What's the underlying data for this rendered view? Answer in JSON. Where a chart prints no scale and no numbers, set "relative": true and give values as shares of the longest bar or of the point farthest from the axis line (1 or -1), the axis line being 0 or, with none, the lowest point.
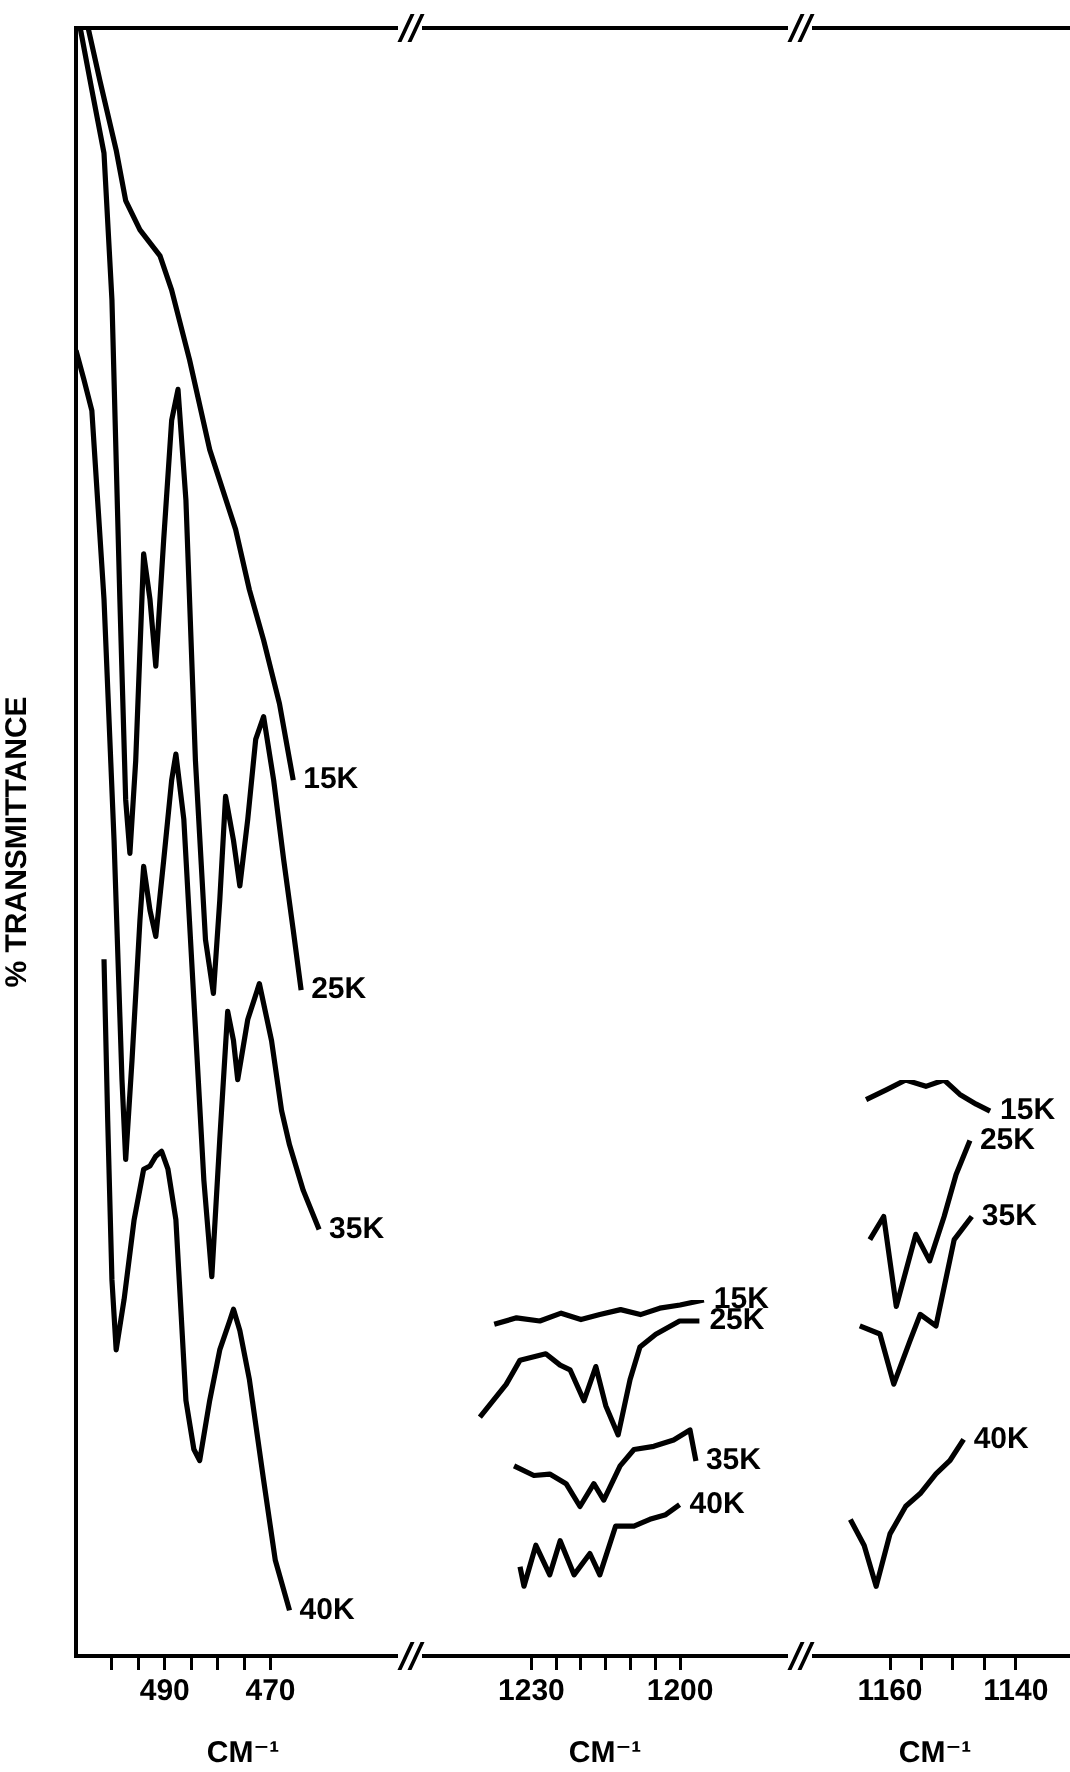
{
  "chart_data": [
    {
      "type": "line",
      "relative": true,
      "ylabel": "% TRANSMITTANCE",
      "xlabel": "CM⁻¹",
      "xlim": [
        506.8,
        443.6
      ],
      "xticks": [
        {
          "value": 500,
          "label": null
        },
        {
          "value": 495,
          "label": null
        },
        490,
        {
          "value": 485,
          "label": null
        },
        {
          "value": 480,
          "label": null
        },
        {
          "value": 475,
          "label": null
        },
        470
      ],
      "series": [
        {
          "name": "15K",
          "color": "#000000",
          "x": [
            504.5,
            502.3,
            499.2,
            497.4,
            494.7,
            490.9,
            488.7,
            485.3,
            481.5,
            479.6,
            476.6,
            474.0,
            471.3,
            468.3,
            465.7
          ],
          "values": [
            1.0,
            0.968,
            0.925,
            0.894,
            0.876,
            0.86,
            0.839,
            0.796,
            0.741,
            0.722,
            0.692,
            0.655,
            0.624,
            0.585,
            0.538
          ]
        },
        {
          "name": "25K",
          "color": "#000000",
          "x": [
            506.0,
            503.8,
            501.5,
            500.0,
            498.5,
            497.4,
            496.6,
            495.5,
            494.0,
            492.8,
            491.7,
            490.2,
            488.7,
            487.5,
            486.0,
            484.2,
            482.3,
            480.8,
            479.6,
            478.5,
            477.0,
            475.8,
            474.3,
            472.8,
            471.3,
            469.4,
            467.5,
            465.7,
            464.2
          ],
          "values": [
            1.0,
            0.962,
            0.923,
            0.833,
            0.649,
            0.526,
            0.493,
            0.55,
            0.677,
            0.649,
            0.608,
            0.686,
            0.759,
            0.778,
            0.71,
            0.55,
            0.44,
            0.407,
            0.464,
            0.528,
            0.501,
            0.473,
            0.514,
            0.563,
            0.577,
            0.538,
            0.489,
            0.446,
            0.409
          ]
        },
        {
          "name": "35K",
          "color": "#000000",
          "x": [
            506.8,
            505.3,
            503.8,
            501.5,
            499.6,
            498.1,
            497.4,
            496.2,
            494.7,
            494.0,
            492.8,
            491.7,
            490.2,
            488.7,
            487.9,
            486.4,
            484.5,
            482.6,
            481.1,
            479.6,
            478.1,
            477.0,
            476.2,
            474.3,
            472.1,
            469.8,
            467.9,
            466.4,
            463.8,
            460.8
          ],
          "values": [
            0.802,
            0.784,
            0.765,
            0.649,
            0.501,
            0.354,
            0.305,
            0.366,
            0.452,
            0.485,
            0.458,
            0.442,
            0.489,
            0.538,
            0.554,
            0.514,
            0.403,
            0.292,
            0.233,
            0.317,
            0.396,
            0.378,
            0.354,
            0.391,
            0.413,
            0.378,
            0.335,
            0.314,
            0.286,
            0.262
          ]
        },
        {
          "name": "40K",
          "color": "#000000",
          "x": [
            501.5,
            500.8,
            500.0,
            499.2,
            497.7,
            495.8,
            494.0,
            492.8,
            491.7,
            490.6,
            489.4,
            487.9,
            486.0,
            484.5,
            483.4,
            481.5,
            479.6,
            477.7,
            477.0,
            475.8,
            474.0,
            471.3,
            469.1,
            466.4
          ],
          "values": [
            0.428,
            0.329,
            0.231,
            0.188,
            0.219,
            0.268,
            0.299,
            0.301,
            0.307,
            0.31,
            0.299,
            0.268,
            0.157,
            0.127,
            0.12,
            0.157,
            0.188,
            0.206,
            0.213,
            0.2,
            0.17,
            0.108,
            0.059,
            0.028
          ]
        }
      ]
    },
    {
      "type": "line",
      "relative": true,
      "xlabel": "CM⁻¹",
      "xlim": [
        1254.5,
        1175.8
      ],
      "xticks": [
        1230,
        {
          "value": 1225,
          "label": null
        },
        {
          "value": 1220,
          "label": null
        },
        {
          "value": 1215,
          "label": null
        },
        {
          "value": 1210,
          "label": null
        },
        {
          "value": 1205,
          "label": null
        },
        1200
      ],
      "series": [
        {
          "name": "15K",
          "color": "#000000",
          "x": [
            1237.5,
            1233.0,
            1228.3,
            1224.0,
            1220.0,
            1216.2,
            1212.0,
            1208.0,
            1204.1,
            1200.0,
            1195.2
          ],
          "values": [
            0.932,
            0.95,
            0.941,
            0.963,
            0.945,
            0.959,
            0.973,
            0.959,
            0.977,
            0.986,
            1.0
          ]
        },
        {
          "name": "25K",
          "color": "#000000",
          "x": [
            1240.4,
            1235.1,
            1232.3,
            1227.1,
            1224.2,
            1222.2,
            1219.4,
            1217.0,
            1215.0,
            1212.5,
            1210.1,
            1208.1,
            1204.9,
            1200.1,
            1196.1
          ],
          "values": [
            0.671,
            0.763,
            0.831,
            0.849,
            0.817,
            0.804,
            0.717,
            0.813,
            0.703,
            0.621,
            0.776,
            0.868,
            0.904,
            0.941,
            0.941
          ]
        },
        {
          "name": "35K",
          "color": "#000000",
          "x": [
            1233.5,
            1229.5,
            1226.3,
            1223.0,
            1220.2,
            1217.4,
            1215.4,
            1212.1,
            1209.3,
            1205.3,
            1201.3,
            1198.0,
            1196.8
          ],
          "values": [
            0.534,
            0.507,
            0.511,
            0.484,
            0.42,
            0.484,
            0.438,
            0.534,
            0.58,
            0.589,
            0.607,
            0.635,
            0.548
          ]
        },
        {
          "name": "40K",
          "color": "#000000",
          "x": [
            1232.3,
            1231.5,
            1229.1,
            1226.3,
            1224.2,
            1221.4,
            1218.2,
            1216.2,
            1213.0,
            1209.3,
            1206.1,
            1202.9,
            1200.1
          ],
          "values": [
            0.251,
            0.196,
            0.311,
            0.228,
            0.324,
            0.228,
            0.288,
            0.228,
            0.365,
            0.365,
            0.384,
            0.397,
            0.425
          ]
        }
      ]
    },
    {
      "type": "line",
      "relative": true,
      "xlabel": "CM⁻¹",
      "xlim": [
        1174.3,
        1131.4
      ],
      "xticks": [
        1160,
        {
          "value": 1155,
          "label": null
        },
        {
          "value": 1150,
          "label": null
        },
        {
          "value": 1145,
          "label": null
        },
        1140
      ],
      "series": [
        {
          "name": "15K",
          "color": "#000000",
          "x": [
            1163.8,
            1160.6,
            1157.5,
            1154.3,
            1151.4,
            1148.9,
            1146.3,
            1144.1
          ],
          "values": [
            0.966,
            0.983,
            1.0,
            0.989,
            1.0,
            0.975,
            0.958,
            0.946
          ]
        },
        {
          "name": "25K",
          "color": "#000000",
          "x": [
            1163.2,
            1161.0,
            1159.0,
            1155.9,
            1153.7,
            1151.4,
            1149.5,
            1147.3
          ],
          "values": [
            0.723,
            0.763,
            0.607,
            0.732,
            0.686,
            0.763,
            0.836,
            0.895
          ]
        },
        {
          "name": "35K",
          "color": "#000000",
          "x": [
            1164.8,
            1161.6,
            1159.4,
            1156.8,
            1155.2,
            1152.7,
            1149.8,
            1147.0
          ],
          "values": [
            0.573,
            0.559,
            0.472,
            0.548,
            0.593,
            0.573,
            0.723,
            0.763
          ]
        },
        {
          "name": "40K",
          "color": "#000000",
          "x": [
            1166.3,
            1164.1,
            1162.2,
            1160.0,
            1157.5,
            1155.2,
            1152.7,
            1150.5,
            1148.3
          ],
          "values": [
            0.237,
            0.192,
            0.121,
            0.212,
            0.26,
            0.282,
            0.316,
            0.339,
            0.376
          ]
        }
      ]
    }
  ]
}
